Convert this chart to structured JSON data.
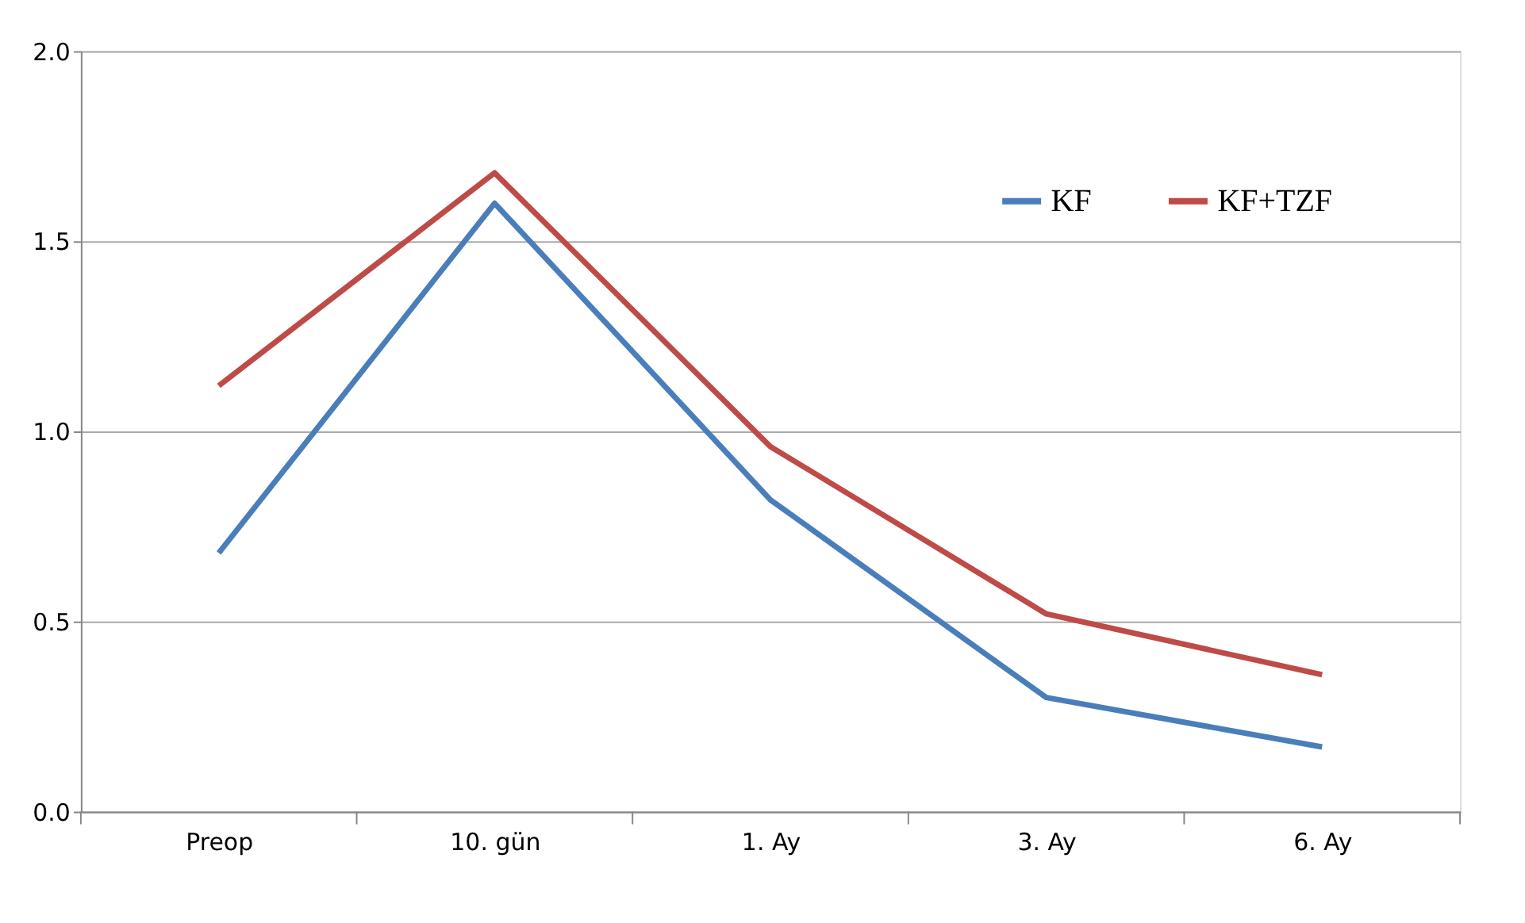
{
  "chart_data": {
    "type": "line",
    "categories": [
      "Preop",
      "10. gün",
      "1. Ay",
      "3. Ay",
      "6. Ay"
    ],
    "series": [
      {
        "name": "KF",
        "color": "#4a7ebb",
        "values": [
          0.68,
          1.6,
          0.82,
          0.3,
          0.17
        ]
      },
      {
        "name": "KF+TZF",
        "color": "#be4b48",
        "values": [
          1.12,
          1.68,
          0.96,
          0.52,
          0.36
        ]
      }
    ],
    "ylim": [
      0,
      2
    ],
    "yticks": [
      {
        "value": 0,
        "label": "0.0"
      },
      {
        "value": 0.5,
        "label": "0.5"
      },
      {
        "value": 1,
        "label": "1.0"
      },
      {
        "value": 1.5,
        "label": "1.5"
      },
      {
        "value": 2,
        "label": "2.0"
      }
    ],
    "grid": "y",
    "legend": "top right",
    "marker": "none",
    "line_style": "solid"
  }
}
